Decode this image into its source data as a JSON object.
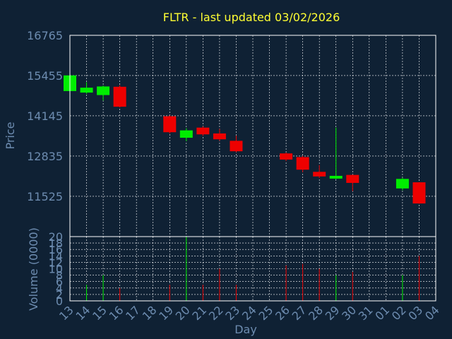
{
  "chart_data": [
    {
      "type": "candlestick",
      "title": "FLTR - last updated 03/02/2026",
      "xlabel": "",
      "ylabel": "Price",
      "ylim": [
        10212,
        16765
      ],
      "yticks": [
        "16765",
        "15455",
        "14145",
        "12835",
        "11525"
      ],
      "grid": true,
      "x_categories": [
        "13",
        "14",
        "15",
        "16",
        "17",
        "18",
        "19",
        "20",
        "21",
        "22",
        "23",
        "24",
        "25",
        "26",
        "27",
        "28",
        "29",
        "30",
        "31",
        "01",
        "02",
        "03",
        "04"
      ],
      "candles": [
        {
          "day": "13",
          "open": 14950,
          "high": 15580,
          "low": 14950,
          "close": 15460
        },
        {
          "day": "14",
          "open": 14900,
          "high": 15240,
          "low": 14860,
          "close": 15060
        },
        {
          "day": "15",
          "open": 14820,
          "high": 15130,
          "low": 14640,
          "close": 15100
        },
        {
          "day": "16",
          "open": 15090,
          "high": 15140,
          "low": 14420,
          "close": 14440
        },
        {
          "day": "19",
          "open": 14130,
          "high": 14160,
          "low": 13570,
          "close": 13610
        },
        {
          "day": "20",
          "open": 13430,
          "high": 13740,
          "low": 13320,
          "close": 13670
        },
        {
          "day": "21",
          "open": 13760,
          "high": 13800,
          "low": 13490,
          "close": 13540
        },
        {
          "day": "22",
          "open": 13570,
          "high": 13720,
          "low": 13330,
          "close": 13380
        },
        {
          "day": "23",
          "open": 13330,
          "high": 13500,
          "low": 12960,
          "close": 12990
        },
        {
          "day": "26",
          "open": 12920,
          "high": 12950,
          "low": 12670,
          "close": 12720
        },
        {
          "day": "27",
          "open": 12800,
          "high": 12840,
          "low": 12310,
          "close": 12390
        },
        {
          "day": "28",
          "open": 12320,
          "high": 12540,
          "low": 12120,
          "close": 12170
        },
        {
          "day": "29",
          "open": 12100,
          "high": 13760,
          "low": 12080,
          "close": 12190
        },
        {
          "day": "30",
          "open": 12220,
          "high": 12230,
          "low": 11690,
          "close": 11960
        },
        {
          "day": "02",
          "open": 11780,
          "high": 12130,
          "low": 11720,
          "close": 12090
        },
        {
          "day": "03",
          "open": 11980,
          "high": 11980,
          "low": 11280,
          "close": 11290
        }
      ]
    },
    {
      "type": "bar",
      "xlabel": "Day",
      "ylabel": "Volume (0000)",
      "ylim": [
        0,
        20
      ],
      "yticks": [
        "20",
        "18",
        "16",
        "14",
        "12",
        "10",
        "8",
        "6",
        "4",
        "2",
        "0"
      ],
      "grid": true,
      "x_categories": [
        "13",
        "14",
        "15",
        "16",
        "17",
        "18",
        "19",
        "20",
        "21",
        "22",
        "23",
        "24",
        "25",
        "26",
        "27",
        "28",
        "29",
        "30",
        "31",
        "01",
        "02",
        "03",
        "04"
      ],
      "bars": [
        {
          "day": "14",
          "value": 5,
          "direction": "up"
        },
        {
          "day": "15",
          "value": 8,
          "direction": "up"
        },
        {
          "day": "16",
          "value": 4,
          "direction": "down"
        },
        {
          "day": "19",
          "value": 5,
          "direction": "down"
        },
        {
          "day": "20",
          "value": 20,
          "direction": "up"
        },
        {
          "day": "21",
          "value": 5,
          "direction": "down"
        },
        {
          "day": "22",
          "value": 10,
          "direction": "down"
        },
        {
          "day": "23",
          "value": 5,
          "direction": "down"
        },
        {
          "day": "26",
          "value": 11,
          "direction": "down"
        },
        {
          "day": "27",
          "value": 11.5,
          "direction": "down"
        },
        {
          "day": "28",
          "value": 10,
          "direction": "down"
        },
        {
          "day": "29",
          "value": 8,
          "direction": "up"
        },
        {
          "day": "30",
          "value": 9,
          "direction": "down"
        },
        {
          "day": "02",
          "value": 8,
          "direction": "up"
        },
        {
          "day": "03",
          "value": 14,
          "direction": "down"
        }
      ]
    }
  ],
  "colors": {
    "background": "#0f2134",
    "plot_frame": "#ffffff",
    "grid": "#ffffff",
    "title": "#ffff33",
    "axis_text": "#6d8cb0",
    "up": "#00ee00",
    "down": "#ee0000"
  }
}
